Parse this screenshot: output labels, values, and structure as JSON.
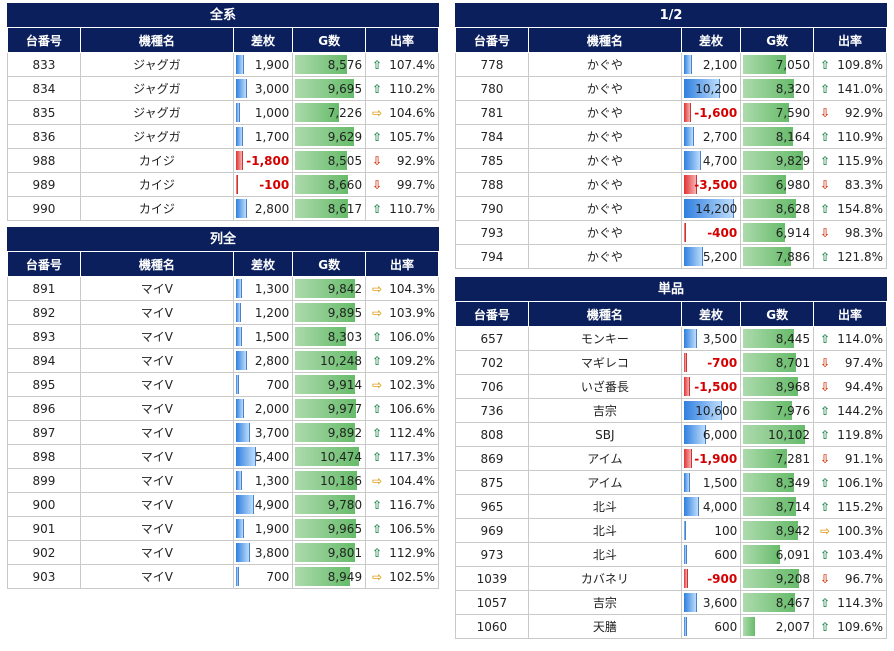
{
  "headers": {
    "no": "台番号",
    "model": "機種名",
    "diff": "差枚",
    "games": "G数",
    "rate": "出率"
  },
  "colors": {
    "header_bg": "#0b1f5c",
    "up": "#2e8b57",
    "down": "#d2451e",
    "flat": "#e0a020",
    "neg_text": "#d40000"
  },
  "icons": {
    "up": "arrow-up-icon",
    "down": "arrow-down-icon",
    "flat": "arrow-right-icon"
  },
  "panels": [
    {
      "id": "zen",
      "title": "全系",
      "rows": [
        {
          "no": "833",
          "model": "ジャグガ",
          "diff": "1,900",
          "diff_num": 1900,
          "games": "8,576",
          "games_num": 8576,
          "rate": "107.4%",
          "trend": "up"
        },
        {
          "no": "834",
          "model": "ジャグガ",
          "diff": "3,000",
          "diff_num": 3000,
          "games": "9,695",
          "games_num": 9695,
          "rate": "110.2%",
          "trend": "up"
        },
        {
          "no": "835",
          "model": "ジャグガ",
          "diff": "1,000",
          "diff_num": 1000,
          "games": "7,226",
          "games_num": 7226,
          "rate": "104.6%",
          "trend": "flat"
        },
        {
          "no": "836",
          "model": "ジャグガ",
          "diff": "1,700",
          "diff_num": 1700,
          "games": "9,629",
          "games_num": 9629,
          "rate": "105.7%",
          "trend": "up"
        },
        {
          "no": "988",
          "model": "カイジ",
          "diff": "-1,800",
          "diff_num": -1800,
          "games": "8,505",
          "games_num": 8505,
          "rate": "92.9%",
          "trend": "down"
        },
        {
          "no": "989",
          "model": "カイジ",
          "diff": "-100",
          "diff_num": -100,
          "games": "8,660",
          "games_num": 8660,
          "rate": "99.7%",
          "trend": "down"
        },
        {
          "no": "990",
          "model": "カイジ",
          "diff": "2,800",
          "diff_num": 2800,
          "games": "8,617",
          "games_num": 8617,
          "rate": "110.7%",
          "trend": "up"
        }
      ]
    },
    {
      "id": "retsu",
      "title": "列全",
      "rows": [
        {
          "no": "891",
          "model": "マイV",
          "diff": "1,300",
          "diff_num": 1300,
          "games": "9,842",
          "games_num": 9842,
          "rate": "104.3%",
          "trend": "flat"
        },
        {
          "no": "892",
          "model": "マイV",
          "diff": "1,200",
          "diff_num": 1200,
          "games": "9,895",
          "games_num": 9895,
          "rate": "103.9%",
          "trend": "flat"
        },
        {
          "no": "893",
          "model": "マイV",
          "diff": "1,500",
          "diff_num": 1500,
          "games": "8,303",
          "games_num": 8303,
          "rate": "106.0%",
          "trend": "up"
        },
        {
          "no": "894",
          "model": "マイV",
          "diff": "2,800",
          "diff_num": 2800,
          "games": "10,248",
          "games_num": 10248,
          "rate": "109.2%",
          "trend": "up"
        },
        {
          "no": "895",
          "model": "マイV",
          "diff": "700",
          "diff_num": 700,
          "games": "9,914",
          "games_num": 9914,
          "rate": "102.3%",
          "trend": "flat"
        },
        {
          "no": "896",
          "model": "マイV",
          "diff": "2,000",
          "diff_num": 2000,
          "games": "9,977",
          "games_num": 9977,
          "rate": "106.6%",
          "trend": "up"
        },
        {
          "no": "897",
          "model": "マイV",
          "diff": "3,700",
          "diff_num": 3700,
          "games": "9,892",
          "games_num": 9892,
          "rate": "112.4%",
          "trend": "up"
        },
        {
          "no": "898",
          "model": "マイV",
          "diff": "5,400",
          "diff_num": 5400,
          "games": "10,474",
          "games_num": 10474,
          "rate": "117.3%",
          "trend": "up"
        },
        {
          "no": "899",
          "model": "マイV",
          "diff": "1,300",
          "diff_num": 1300,
          "games": "10,186",
          "games_num": 10186,
          "rate": "104.4%",
          "trend": "flat"
        },
        {
          "no": "900",
          "model": "マイV",
          "diff": "4,900",
          "diff_num": 4900,
          "games": "9,780",
          "games_num": 9780,
          "rate": "116.7%",
          "trend": "up"
        },
        {
          "no": "901",
          "model": "マイV",
          "diff": "1,900",
          "diff_num": 1900,
          "games": "9,965",
          "games_num": 9965,
          "rate": "106.5%",
          "trend": "up"
        },
        {
          "no": "902",
          "model": "マイV",
          "diff": "3,800",
          "diff_num": 3800,
          "games": "9,801",
          "games_num": 9801,
          "rate": "112.9%",
          "trend": "up"
        },
        {
          "no": "903",
          "model": "マイV",
          "diff": "700",
          "diff_num": 700,
          "games": "8,949",
          "games_num": 8949,
          "rate": "102.5%",
          "trend": "flat"
        }
      ]
    },
    {
      "id": "half",
      "title": "1/2",
      "rows": [
        {
          "no": "778",
          "model": "かぐや",
          "diff": "2,100",
          "diff_num": 2100,
          "games": "7,050",
          "games_num": 7050,
          "rate": "109.8%",
          "trend": "up"
        },
        {
          "no": "780",
          "model": "かぐや",
          "diff": "10,200",
          "diff_num": 10200,
          "games": "8,320",
          "games_num": 8320,
          "rate": "141.0%",
          "trend": "up"
        },
        {
          "no": "781",
          "model": "かぐや",
          "diff": "-1,600",
          "diff_num": -1600,
          "games": "7,590",
          "games_num": 7590,
          "rate": "92.9%",
          "trend": "down"
        },
        {
          "no": "784",
          "model": "かぐや",
          "diff": "2,700",
          "diff_num": 2700,
          "games": "8,164",
          "games_num": 8164,
          "rate": "110.9%",
          "trend": "up"
        },
        {
          "no": "785",
          "model": "かぐや",
          "diff": "4,700",
          "diff_num": 4700,
          "games": "9,829",
          "games_num": 9829,
          "rate": "115.9%",
          "trend": "up"
        },
        {
          "no": "788",
          "model": "かぐや",
          "diff": "-3,500",
          "diff_num": -3500,
          "games": "6,980",
          "games_num": 6980,
          "rate": "83.3%",
          "trend": "down"
        },
        {
          "no": "790",
          "model": "かぐや",
          "diff": "14,200",
          "diff_num": 14200,
          "games": "8,628",
          "games_num": 8628,
          "rate": "154.8%",
          "trend": "up"
        },
        {
          "no": "793",
          "model": "かぐや",
          "diff": "-400",
          "diff_num": -400,
          "games": "6,914",
          "games_num": 6914,
          "rate": "98.3%",
          "trend": "down"
        },
        {
          "no": "794",
          "model": "かぐや",
          "diff": "5,200",
          "diff_num": 5200,
          "games": "7,886",
          "games_num": 7886,
          "rate": "121.8%",
          "trend": "up"
        }
      ]
    },
    {
      "id": "tanpin",
      "title": "単品",
      "rows": [
        {
          "no": "657",
          "model": "モンキー",
          "diff": "3,500",
          "diff_num": 3500,
          "games": "8,445",
          "games_num": 8445,
          "rate": "114.0%",
          "trend": "up"
        },
        {
          "no": "702",
          "model": "マギレコ",
          "diff": "-700",
          "diff_num": -700,
          "games": "8,701",
          "games_num": 8701,
          "rate": "97.4%",
          "trend": "down"
        },
        {
          "no": "706",
          "model": "いざ番長",
          "diff": "-1,500",
          "diff_num": -1500,
          "games": "8,968",
          "games_num": 8968,
          "rate": "94.4%",
          "trend": "down"
        },
        {
          "no": "736",
          "model": "吉宗",
          "diff": "10,600",
          "diff_num": 10600,
          "games": "7,976",
          "games_num": 7976,
          "rate": "144.2%",
          "trend": "up"
        },
        {
          "no": "808",
          "model": "SBJ",
          "diff": "6,000",
          "diff_num": 6000,
          "games": "10,102",
          "games_num": 10102,
          "rate": "119.8%",
          "trend": "up"
        },
        {
          "no": "869",
          "model": "アイム",
          "diff": "-1,900",
          "diff_num": -1900,
          "games": "7,281",
          "games_num": 7281,
          "rate": "91.1%",
          "trend": "down"
        },
        {
          "no": "875",
          "model": "アイム",
          "diff": "1,500",
          "diff_num": 1500,
          "games": "8,349",
          "games_num": 8349,
          "rate": "106.1%",
          "trend": "up"
        },
        {
          "no": "965",
          "model": "北斗",
          "diff": "4,000",
          "diff_num": 4000,
          "games": "8,714",
          "games_num": 8714,
          "rate": "115.2%",
          "trend": "up"
        },
        {
          "no": "969",
          "model": "北斗",
          "diff": "100",
          "diff_num": 100,
          "games": "8,942",
          "games_num": 8942,
          "rate": "100.3%",
          "trend": "flat"
        },
        {
          "no": "973",
          "model": "北斗",
          "diff": "600",
          "diff_num": 600,
          "games": "6,091",
          "games_num": 6091,
          "rate": "103.4%",
          "trend": "up"
        },
        {
          "no": "1039",
          "model": "カバネリ",
          "diff": "-900",
          "diff_num": -900,
          "games": "9,208",
          "games_num": 9208,
          "rate": "96.7%",
          "trend": "down"
        },
        {
          "no": "1057",
          "model": "吉宗",
          "diff": "3,600",
          "diff_num": 3600,
          "games": "8,467",
          "games_num": 8467,
          "rate": "114.3%",
          "trend": "up"
        },
        {
          "no": "1060",
          "model": "天膳",
          "diff": "600",
          "diff_num": 600,
          "games": "2,007",
          "games_num": 2007,
          "rate": "109.6%",
          "trend": "up"
        }
      ]
    }
  ]
}
